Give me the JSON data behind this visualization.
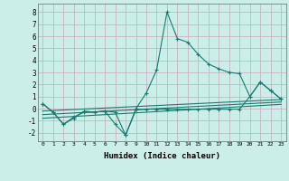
{
  "xlabel": "Humidex (Indice chaleur)",
  "bg_color": "#cceee8",
  "grid_color": "#c8a8b8",
  "line_color": "#1a7a6e",
  "xlim": [
    -0.5,
    23.5
  ],
  "ylim": [
    -2.7,
    8.7
  ],
  "xticks": [
    0,
    1,
    2,
    3,
    4,
    5,
    6,
    7,
    8,
    9,
    10,
    11,
    12,
    13,
    14,
    15,
    16,
    17,
    18,
    19,
    20,
    21,
    22,
    23
  ],
  "yticks": [
    -2,
    -1,
    0,
    1,
    2,
    3,
    4,
    5,
    6,
    7,
    8
  ],
  "main_x": [
    0,
    1,
    2,
    3,
    4,
    5,
    6,
    7,
    8,
    9,
    10,
    11,
    12,
    13,
    14,
    15,
    16,
    17,
    18,
    19,
    20,
    21,
    22,
    23
  ],
  "main_y": [
    0.4,
    -0.3,
    -1.3,
    -0.8,
    -0.2,
    -0.3,
    -0.2,
    -1.3,
    -2.2,
    0.0,
    1.3,
    3.2,
    8.0,
    5.8,
    5.5,
    4.5,
    3.7,
    3.3,
    3.0,
    2.9,
    1.0,
    2.2,
    1.5,
    0.8
  ],
  "lower_x": [
    0,
    1,
    2,
    3,
    4,
    5,
    6,
    7,
    8,
    9,
    10,
    11,
    12,
    13,
    14,
    15,
    16,
    17,
    18,
    19,
    20,
    21,
    22,
    23
  ],
  "lower_y": [
    0.4,
    -0.3,
    -1.3,
    -0.7,
    -0.3,
    -0.3,
    -0.2,
    -0.3,
    -2.2,
    -0.1,
    -0.05,
    -0.05,
    -0.05,
    -0.05,
    -0.05,
    -0.05,
    -0.05,
    -0.05,
    -0.05,
    -0.05,
    1.0,
    2.2,
    1.5,
    0.8
  ],
  "trend1_x": [
    0,
    23
  ],
  "trend1_y": [
    -0.2,
    0.75
  ],
  "trend2_x": [
    0,
    23
  ],
  "trend2_y": [
    -0.5,
    0.55
  ],
  "trend3_x": [
    0,
    23
  ],
  "trend3_y": [
    -0.8,
    0.35
  ]
}
